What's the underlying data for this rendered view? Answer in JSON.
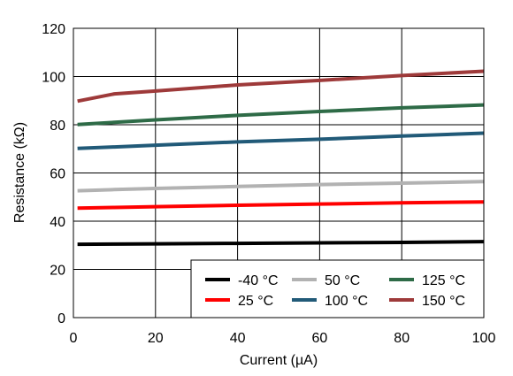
{
  "chart_data": {
    "type": "line",
    "xlabel": "Current (µA)",
    "ylabel": "Resistance (kΩ)",
    "xlim": [
      0,
      100
    ],
    "ylim": [
      0,
      120
    ],
    "x_ticks": [
      0,
      20,
      40,
      60,
      80,
      100
    ],
    "y_ticks": [
      0,
      20,
      40,
      60,
      80,
      100,
      120
    ],
    "grid": true,
    "legend_position": "bottom-right",
    "legend_columns": 3,
    "series": [
      {
        "name": "-40 °C",
        "color": "#000000",
        "x": [
          1,
          10,
          20,
          40,
          60,
          80,
          100
        ],
        "y": [
          30.4,
          30.5,
          30.6,
          30.8,
          31.0,
          31.2,
          31.5
        ]
      },
      {
        "name": "25 °C",
        "color": "#ff0000",
        "x": [
          1,
          10,
          20,
          40,
          60,
          80,
          100
        ],
        "y": [
          45.4,
          45.7,
          46.0,
          46.6,
          47.1,
          47.6,
          48.0
        ]
      },
      {
        "name": "50 °C",
        "color": "#b2b2b2",
        "x": [
          1,
          10,
          20,
          40,
          60,
          80,
          100
        ],
        "y": [
          52.6,
          53.1,
          53.6,
          54.4,
          55.2,
          55.8,
          56.4
        ]
      },
      {
        "name": "100 °C",
        "color": "#215a78",
        "x": [
          1,
          10,
          20,
          40,
          60,
          80,
          100
        ],
        "y": [
          70.2,
          70.8,
          71.5,
          72.9,
          74.0,
          75.3,
          76.5
        ]
      },
      {
        "name": "125 °C",
        "color": "#2e6b47",
        "x": [
          1,
          10,
          20,
          40,
          60,
          80,
          100
        ],
        "y": [
          80.1,
          81.0,
          82.0,
          83.9,
          85.5,
          87.0,
          88.2
        ]
      },
      {
        "name": "150 °C",
        "color": "#9e3a3a",
        "x": [
          1,
          10,
          20,
          40,
          60,
          80,
          100
        ],
        "y": [
          89.8,
          92.8,
          94.0,
          96.5,
          98.4,
          100.4,
          102.2
        ]
      }
    ]
  }
}
